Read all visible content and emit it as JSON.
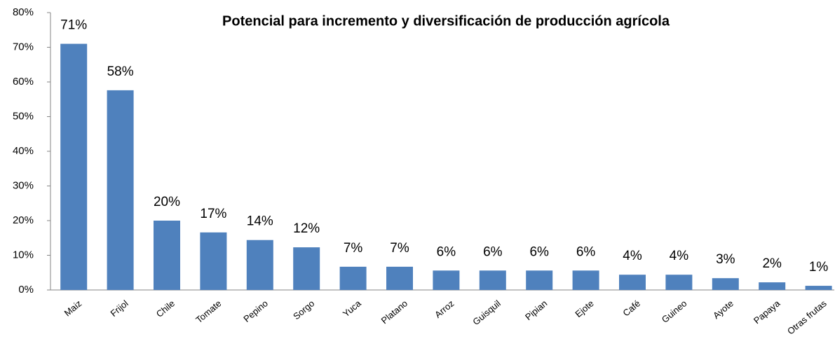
{
  "chart_data": {
    "type": "bar",
    "title": "Potencial para incremento  y diversificación de producción agrícola",
    "categories": [
      "Maiz",
      "Frijol",
      "Chile",
      "Tomate",
      "Pepino",
      "Sorgo",
      "Yuca",
      "Platano",
      "Arroz",
      "Guisquil",
      "Pipian",
      "Ejote",
      "Café",
      "Guineo",
      "Ayote",
      "Papaya",
      "Otras frutas"
    ],
    "values": [
      71,
      57.6,
      20,
      16.6,
      14.4,
      12.3,
      6.7,
      6.7,
      5.6,
      5.6,
      5.6,
      5.6,
      4.4,
      4.4,
      3.4,
      2.2,
      1.2
    ],
    "value_labels": [
      "71%",
      "58%",
      "20%",
      "17%",
      "14%",
      "12%",
      "7%",
      "7%",
      "6%",
      "6%",
      "6%",
      "6%",
      "4%",
      "4%",
      "3%",
      "2%",
      "1%"
    ],
    "color": "#4f81bd",
    "ylim": [
      0,
      80
    ],
    "yticks": [
      {
        "value": 0,
        "label": "0%"
      },
      {
        "value": 10,
        "label": "10%"
      },
      {
        "value": 20,
        "label": "20%"
      },
      {
        "value": 30,
        "label": "30%"
      },
      {
        "value": 40,
        "label": "40%"
      },
      {
        "value": 50,
        "label": "50%"
      },
      {
        "value": 60,
        "label": "60%"
      },
      {
        "value": 70,
        "label": "70%"
      },
      {
        "value": 80,
        "label": "80%"
      }
    ],
    "grid": false
  }
}
